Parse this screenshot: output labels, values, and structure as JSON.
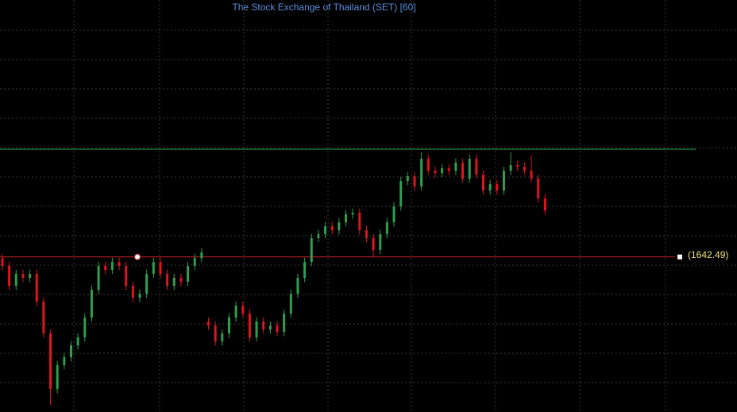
{
  "chart_data": {
    "type": "candlestick",
    "title": "The Stock Exchange of Thailand (SET) [60]",
    "up_color": "#2e9e4f",
    "down_color": "#e0141e",
    "ylim": [
      1349.5,
      2128
    ],
    "open": [
      1640,
      1625.5,
      1588,
      1610.5,
      1603,
      1610.5,
      1558,
      1498,
      1393,
      1438,
      1453,
      1475.5,
      1490.5,
      1528,
      1580.5,
      1625.5,
      1618,
      1633,
      1625.5,
      1588,
      1565.5,
      1573,
      1610.5,
      1633,
      1610.5,
      1588,
      1603,
      1595.5,
      1625.5,
      1640.5,
      1520,
      1513,
      1483,
      1498,
      1528,
      1550.5,
      1535.5,
      1490.5,
      1520.5,
      1505.5,
      1513,
      1501,
      1535.5,
      1573,
      1603,
      1633,
      1678,
      1685.5,
      1700.5,
      1693,
      1708,
      1723,
      1726,
      1693,
      1678,
      1655.5,
      1685.5,
      1708,
      1738,
      1786,
      1795,
      1775.5,
      1828,
      1805.5,
      1801,
      1810,
      1805.5,
      1820.5,
      1790.5,
      1828,
      1798,
      1768,
      1780,
      1768,
      1805.5,
      1816,
      1813,
      1805.5,
      1790.5,
      1753
    ],
    "high": [
      1648,
      1633.5,
      1618.5,
      1618.5,
      1618.5,
      1618.5,
      1566,
      1506,
      1446,
      1461,
      1483.5,
      1498.5,
      1536,
      1588.5,
      1633.5,
      1633.5,
      1641,
      1641,
      1633.5,
      1596,
      1581,
      1618.5,
      1641,
      1641,
      1618.5,
      1611,
      1611,
      1633.5,
      1648.5,
      1659,
      1528,
      1521,
      1506,
      1536,
      1558.5,
      1558.5,
      1543.5,
      1528.5,
      1528.5,
      1521,
      1521,
      1543.5,
      1581,
      1611,
      1641,
      1686,
      1693.5,
      1708.5,
      1708.5,
      1716,
      1731,
      1734,
      1734,
      1701,
      1686,
      1693.5,
      1716,
      1746,
      1794,
      1803,
      1803,
      1840,
      1836,
      1813.5,
      1818,
      1818,
      1828.5,
      1828.5,
      1836,
      1836,
      1806,
      1788,
      1788,
      1813.5,
      1840,
      1824,
      1821,
      1835,
      1798.5,
      1761
    ],
    "low": [
      1617.5,
      1580,
      1580,
      1595,
      1595,
      1550,
      1490,
      1363,
      1385,
      1430,
      1445,
      1467.5,
      1482.5,
      1520,
      1572.5,
      1610,
      1610,
      1617.5,
      1580,
      1557.5,
      1557.5,
      1565,
      1602.5,
      1602.5,
      1580,
      1580,
      1587.5,
      1587.5,
      1617.5,
      1632.5,
      1505,
      1475,
      1475,
      1490,
      1520,
      1527.5,
      1482.5,
      1482.5,
      1497.5,
      1497.5,
      1493,
      1493,
      1527.5,
      1565,
      1595,
      1625,
      1670,
      1677.5,
      1685,
      1685,
      1700,
      1715,
      1685,
      1670,
      1642,
      1647.5,
      1677.5,
      1700,
      1730,
      1778,
      1767.5,
      1767.5,
      1797.5,
      1793,
      1793,
      1797.5,
      1797.5,
      1782.5,
      1782.5,
      1790,
      1760,
      1760,
      1760,
      1760,
      1797.5,
      1805,
      1797.5,
      1782.5,
      1745,
      1722.5
    ],
    "close": [
      1625.5,
      1588,
      1610.5,
      1603,
      1610.5,
      1558,
      1498,
      1393,
      1438,
      1453,
      1475.5,
      1490.5,
      1528,
      1580.5,
      1625.5,
      1618,
      1633,
      1625.5,
      1588,
      1565.5,
      1573,
      1610.5,
      1633,
      1610.5,
      1588,
      1603,
      1595.5,
      1625.5,
      1640.5,
      1651,
      1513,
      1483,
      1498,
      1528,
      1550.5,
      1535.5,
      1490.5,
      1520.5,
      1505.5,
      1513,
      1501,
      1535.5,
      1573,
      1603,
      1633,
      1678,
      1685.5,
      1700.5,
      1693,
      1708,
      1723,
      1726,
      1693,
      1678,
      1655.5,
      1685.5,
      1708,
      1738,
      1786,
      1795,
      1775.5,
      1828,
      1805.5,
      1801,
      1810,
      1805.5,
      1820.5,
      1790.5,
      1828,
      1798,
      1768,
      1780,
      1768,
      1805.5,
      1816,
      1813,
      1805.5,
      1790.5,
      1753,
      1730.5
    ],
    "hlines": [
      {
        "value": 1846,
        "color": "#22b04a"
      },
      {
        "value": {
          "value": 1642.49,
          "label": "(1642.49)"
        },
        "color": "#d0202a",
        "label_color": "#f2e27a"
      }
    ]
  }
}
